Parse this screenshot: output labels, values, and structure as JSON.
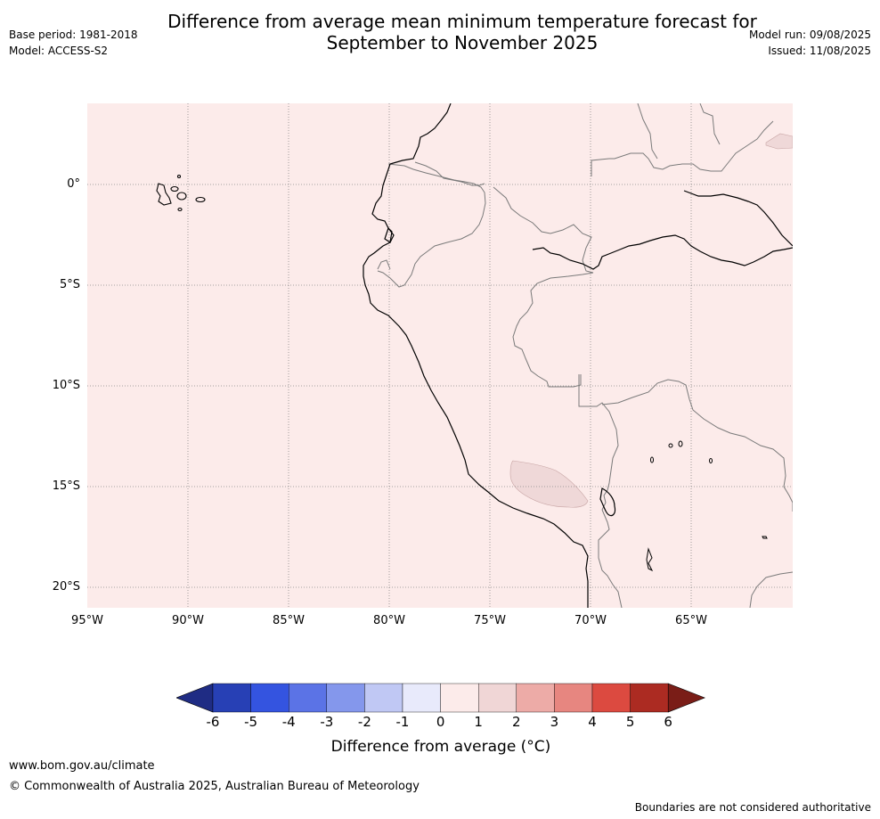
{
  "header": {
    "title_line1": "Difference from average mean minimum temperature forecast for",
    "title_line2": "September to November 2025",
    "base_period": "Base period: 1981-2018",
    "model": "Model: ACCESS-S2",
    "model_run": "Model run: 09/08/2025",
    "issued": "Issued: 11/08/2025"
  },
  "map": {
    "lon_ticks": [
      "95°W",
      "90°W",
      "85°W",
      "80°W",
      "75°W",
      "70°W",
      "65°W"
    ],
    "lat_ticks": [
      "0°",
      "5°S",
      "10°S",
      "15°S",
      "20°S"
    ],
    "background_anomaly_color": "#fcebea",
    "patch_anomaly_color": "#efd8d8",
    "coastline_color": "#000000",
    "border_color": "#7a7a7a",
    "grid_color": "#888888"
  },
  "colorbar": {
    "ticks": [
      "-6",
      "-5",
      "-4",
      "-3",
      "-2",
      "-1",
      "0",
      "1",
      "2",
      "3",
      "4",
      "5",
      "6"
    ],
    "label": "Difference from average (°C)",
    "colors": [
      "#1f2c84",
      "#2740b5",
      "#3454e0",
      "#5b73e6",
      "#8497ec",
      "#c0c8f4",
      "#e8eafb",
      "#fcebea",
      "#f0d6d6",
      "#edaba7",
      "#e78680",
      "#dc4a40",
      "#ac2b22",
      "#7a1d17"
    ]
  },
  "footer": {
    "url": "www.bom.gov.au/climate",
    "copyright": "© Commonwealth of Australia 2025, Australian Bureau of Meteorology",
    "note": "Boundaries are not considered authoritative"
  }
}
